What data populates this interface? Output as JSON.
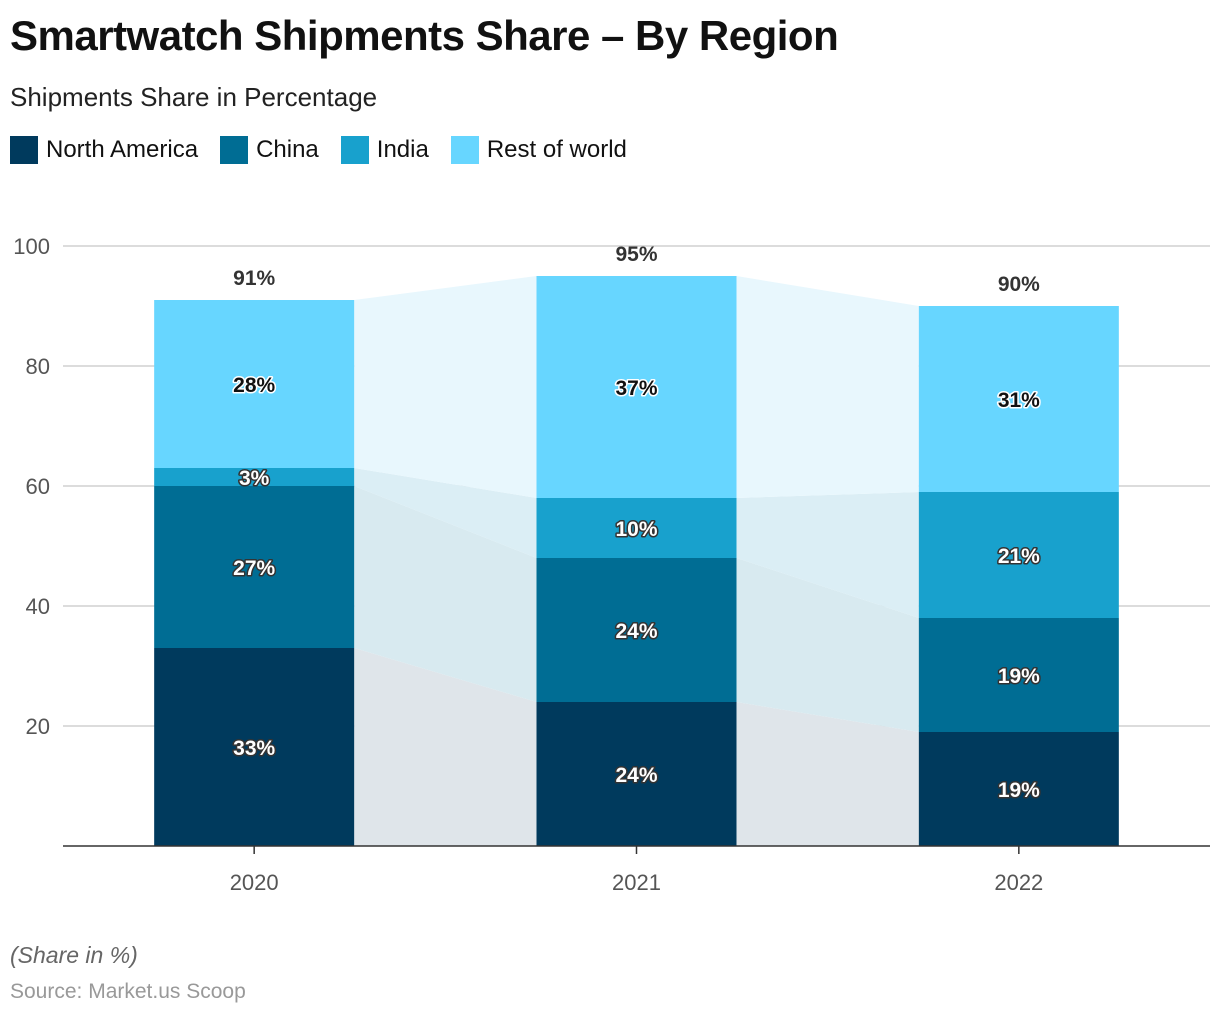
{
  "title": "Smartwatch Shipments Share – By Region",
  "subtitle": "Shipments Share in Percentage",
  "note": "(Share in %)",
  "source": "Source: Market.us Scoop",
  "chart_data": {
    "type": "bar",
    "stacked": true,
    "categories": [
      "2020",
      "2021",
      "2022"
    ],
    "series": [
      {
        "name": "North America",
        "color": "#003a5d",
        "values": [
          33,
          24,
          19
        ]
      },
      {
        "name": "China",
        "color": "#006d94",
        "values": [
          27,
          24,
          19
        ]
      },
      {
        "name": "India",
        "color": "#18a1cd",
        "values": [
          3,
          10,
          21
        ]
      },
      {
        "name": "Rest of world",
        "color": "#67d6ff",
        "values": [
          28,
          37,
          31
        ]
      }
    ],
    "totals": [
      "91%",
      "95%",
      "90%"
    ],
    "value_suffix": "%",
    "ylim": [
      0,
      100
    ],
    "yticks": [
      20,
      40,
      60,
      80,
      100
    ],
    "grid": true,
    "legend": "top-left",
    "xlabel": "",
    "ylabel": ""
  }
}
